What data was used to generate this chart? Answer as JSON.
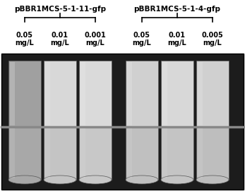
{
  "group1_label": "pBBR1MCS-5-1-11-gfp",
  "group2_label": "pBBR1MCS-5-1-4-gfp",
  "group1_concs": [
    "0.05\nmg/L",
    "0.01\nmg/L",
    "0.001\nmg/L"
  ],
  "group2_concs": [
    "0.05\nmg/L",
    "0.01\nmg/L",
    "0.005\nmg/L"
  ],
  "photo_bg": "#1c1c1c",
  "shelf_color": "#aaaaaa",
  "tube_colors_top": [
    "#a0a0a0",
    "#d0d0d0",
    "#d4d4d4",
    "#cccccc",
    "#d2d2d2",
    "#c8c8c8"
  ],
  "tube_colors_bottom": [
    "#a8a8a8",
    "#c0c0c0",
    "#c4c4c4",
    "#bcbcbc",
    "#c2c2c2",
    "#b8b8b8"
  ],
  "bracket_label_fontsize": 7.5,
  "conc_fontsize": 7.0,
  "fig_bg": "#ffffff"
}
